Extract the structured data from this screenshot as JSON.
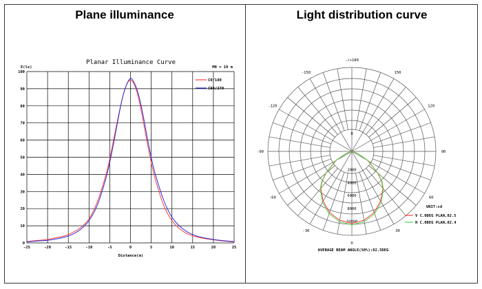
{
  "panels": {
    "left_title": "Plane illuminance",
    "right_title": "Light distribution curve"
  },
  "colors": {
    "red": "#ff3b3b",
    "blue": "#2a2ad8",
    "green": "#4cd24c",
    "grid": "#000000"
  },
  "chart_data": [
    {
      "type": "line",
      "title": "Planar Illuminance Curve",
      "xlabel": "Distance(m)",
      "ylabel": "E(lx)",
      "annotation": "MH = 10 m",
      "xlim": [
        -25,
        25
      ],
      "ylim": [
        0,
        100
      ],
      "xticks": [
        -25,
        -20,
        -15,
        -10,
        -5,
        0,
        5,
        10,
        15,
        20,
        25
      ],
      "yticks": [
        0,
        10,
        20,
        30,
        40,
        50,
        60,
        70,
        80,
        90,
        100
      ],
      "grid": true,
      "legend_position": "top-right",
      "x": [
        -25,
        -22,
        -20,
        -18,
        -16,
        -14,
        -12,
        -10,
        -8,
        -6,
        -5,
        -4,
        -3,
        -2,
        -1,
        0,
        1,
        2,
        3,
        4,
        5,
        6,
        8,
        10,
        12,
        14,
        16,
        18,
        20,
        22,
        25
      ],
      "series": [
        {
          "name": "C0/180",
          "color": "#ff3b3b",
          "values": [
            0.8,
            1.5,
            2,
            3,
            4,
            6,
            9,
            14,
            24,
            39,
            49,
            61,
            73,
            84,
            92,
            95,
            92,
            84,
            72,
            59,
            47,
            37,
            22,
            13,
            8,
            5,
            3.5,
            2.5,
            1.8,
            1.2,
            0.6
          ]
        },
        {
          "name": "C90/270",
          "color": "#2a2ad8",
          "values": [
            0.6,
            1.2,
            1.5,
            2.3,
            3.3,
            5,
            8,
            13,
            22,
            37,
            47,
            59,
            72,
            84,
            92,
            96,
            93,
            86,
            75,
            62,
            50,
            40,
            25,
            15,
            9.5,
            6,
            4,
            2.8,
            2,
            1.4,
            0.8
          ]
        }
      ]
    },
    {
      "type": "polar",
      "angle_labels": {
        "top": "-/+180",
        "upper_left": "-150",
        "upper_right": "150",
        "left_high": "-120",
        "right_high": "120",
        "left": "-90",
        "right": "90",
        "left_low": "-60",
        "right_low": "60",
        "lower_left": "-30",
        "lower_right": "30",
        "bottom": "0"
      },
      "radial_labels": [
        "0",
        "2000",
        "4000",
        "6000",
        "8000",
        "10000"
      ],
      "rmax": 12000,
      "unit": "UNIT:cd",
      "footer": "AVERAGE BEAM ANGLE(50%):82.5DEG",
      "angles": [
        0,
        10,
        20,
        30,
        40,
        45,
        50,
        60,
        70,
        90
      ],
      "series": [
        {
          "name": "V C.0DEG PLAN,82.5",
          "color": "#ff3b3b",
          "values": [
            10300,
            10000,
            9300,
            8200,
            6900,
            6000,
            4800,
            2600,
            900,
            0
          ]
        },
        {
          "name": "H C.0DEG PLAN,82.4",
          "color": "#4cd24c",
          "values": [
            10500,
            10200,
            9500,
            8400,
            7000,
            6100,
            4900,
            2700,
            950,
            0
          ]
        }
      ]
    }
  ]
}
